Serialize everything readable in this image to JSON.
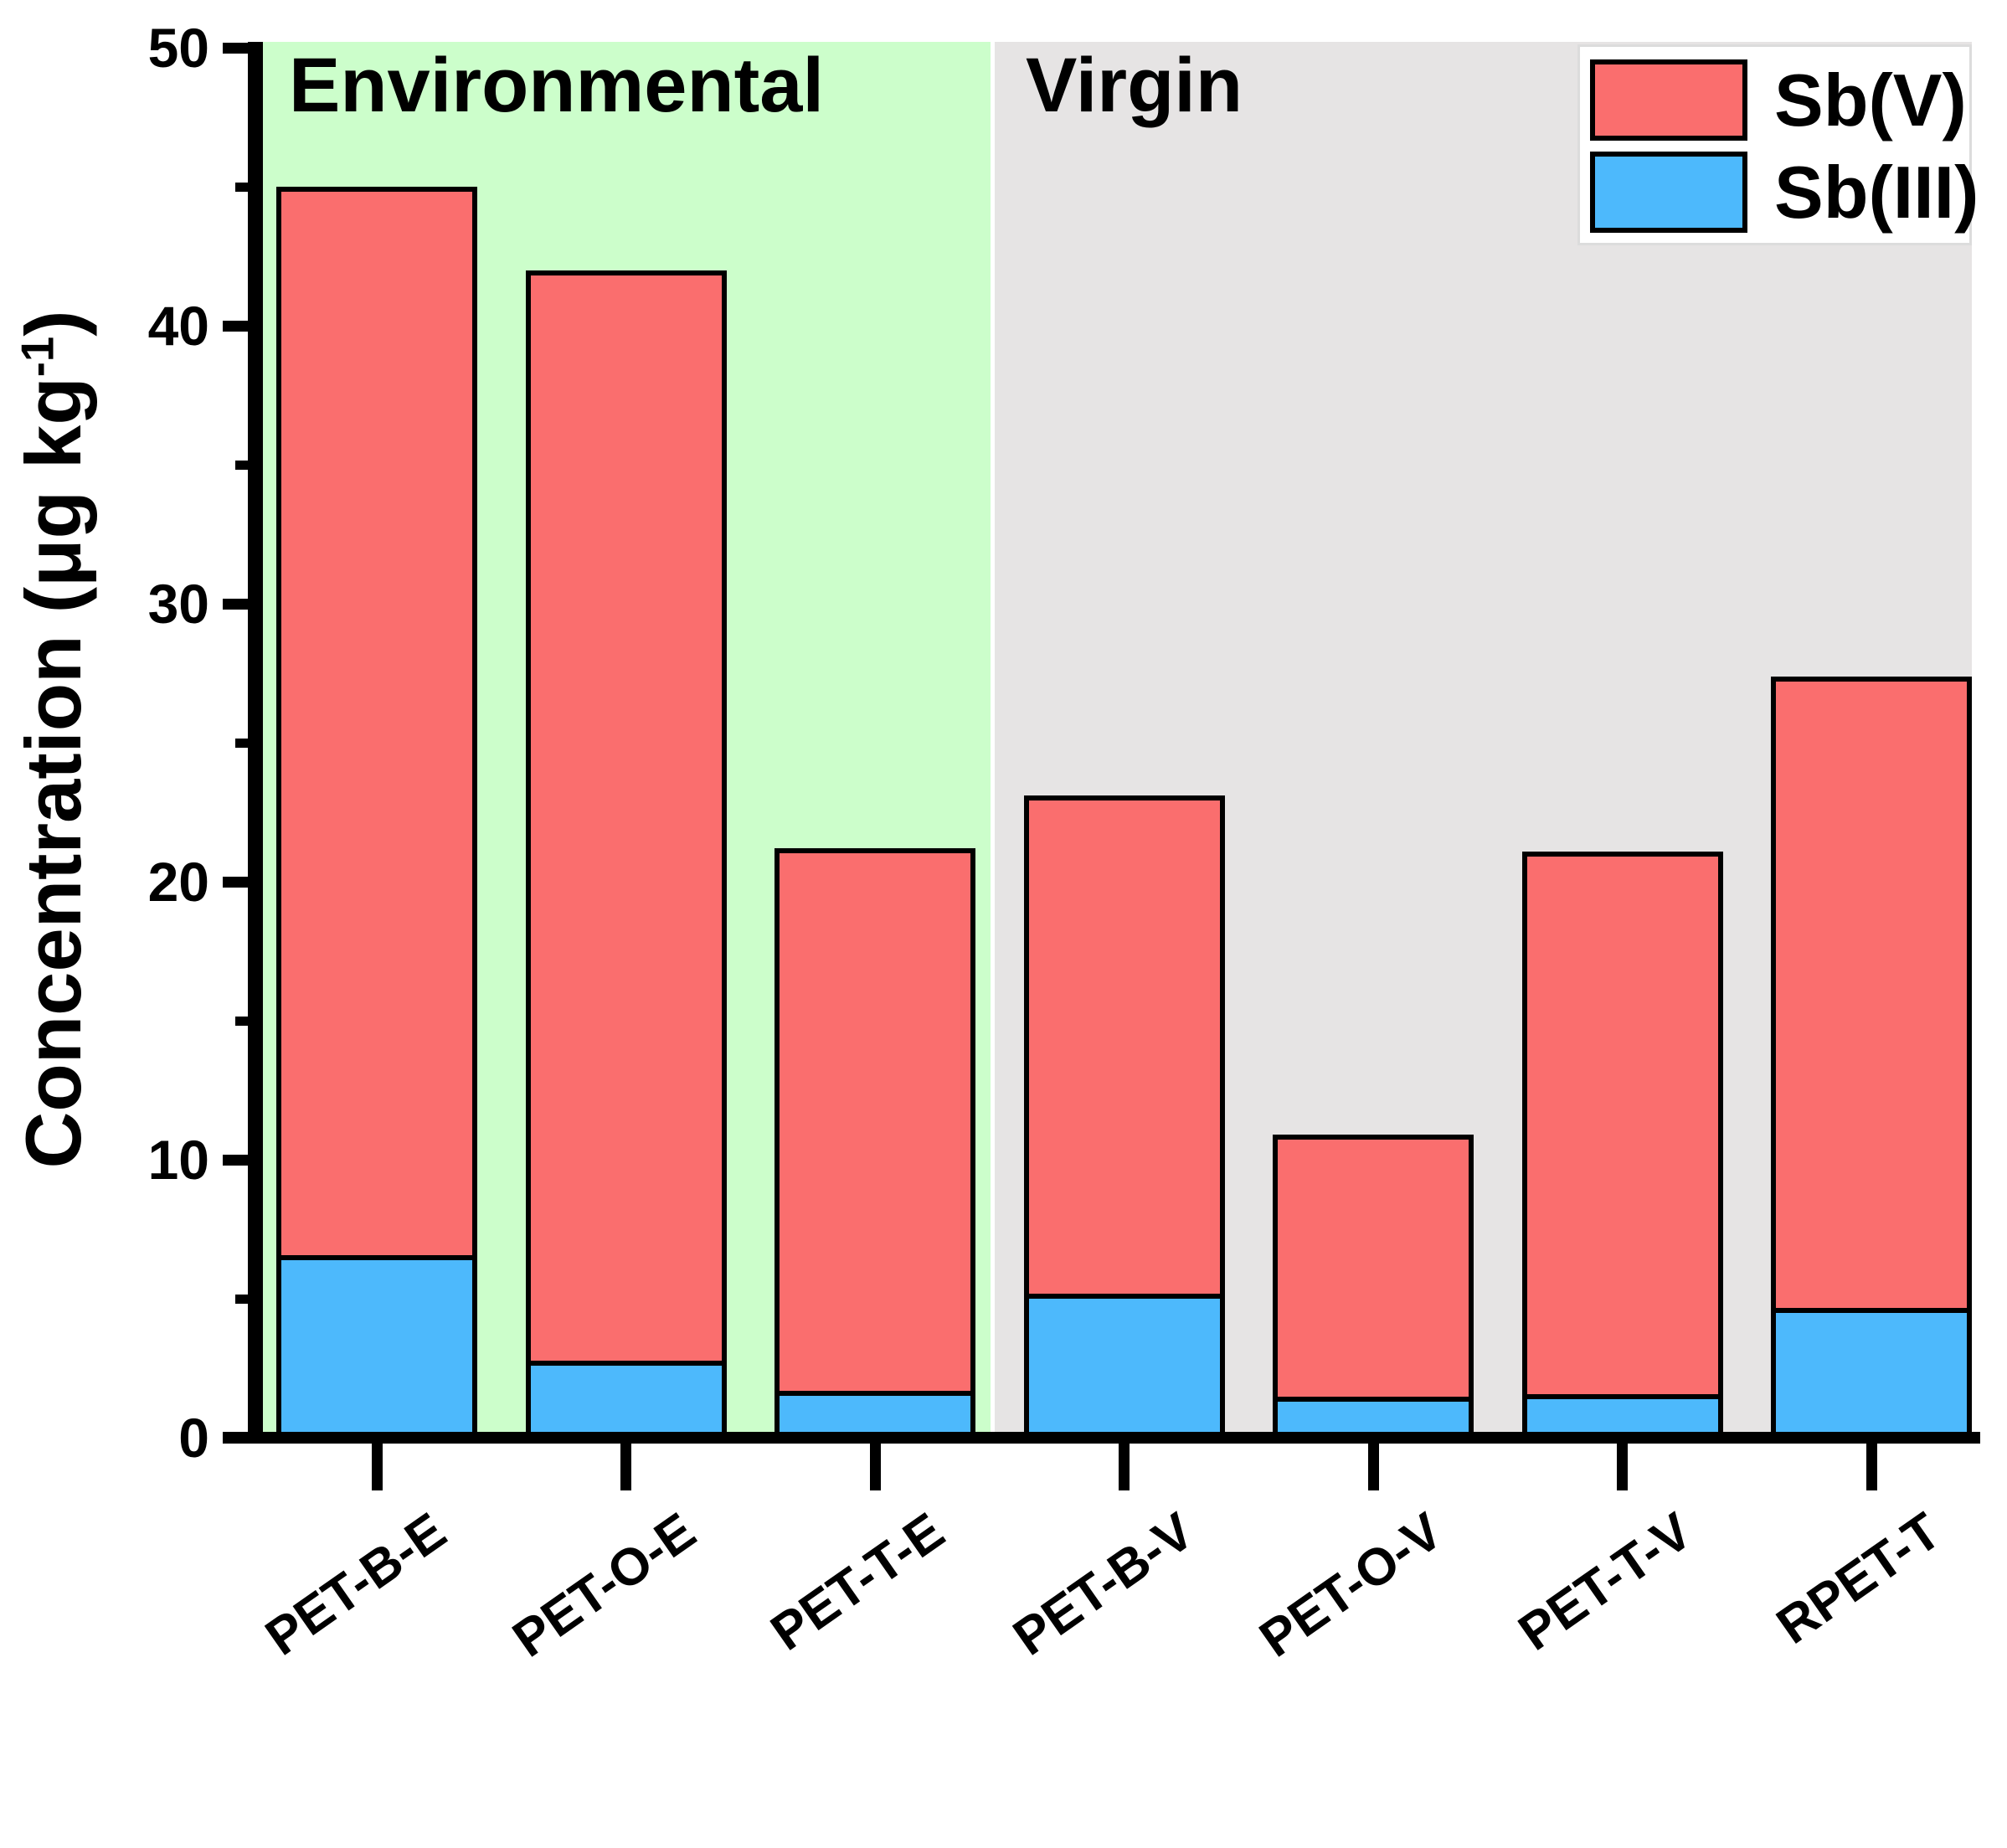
{
  "figure": {
    "y_axis": {
      "title_main": "Concentration (μg kg",
      "title_sup": "-1",
      "title_end": ")",
      "ticks": [
        0,
        10,
        20,
        30,
        40,
        50
      ],
      "minor_ticks": [
        5,
        15,
        25,
        35,
        45
      ],
      "range": [
        0,
        50
      ]
    },
    "regions": [
      {
        "id": "environmental",
        "label": "Environmental",
        "color": "#CCFECB"
      },
      {
        "id": "virgin",
        "label": "Virgin",
        "color": "#E6E4E4"
      }
    ],
    "legend": [
      {
        "label": "Sb(V)",
        "color": "#FA6E6E"
      },
      {
        "label": "Sb(III)",
        "color": "#4DB9FC"
      }
    ]
  },
  "chart_data": {
    "type": "bar",
    "stacked": true,
    "title": "",
    "xlabel": "",
    "ylabel": "Concentration (μg kg⁻¹)",
    "ylim": [
      0,
      50
    ],
    "grid": false,
    "legend_position": "top-right",
    "categories": [
      "PET-B-E",
      "PET-O-E",
      "PET-T-E",
      "PET-B-V",
      "PET-O-V",
      "PET-T-V",
      "RPET-T"
    ],
    "category_groups": [
      "Environmental",
      "Environmental",
      "Environmental",
      "Virgin",
      "Virgin",
      "Virgin",
      "Virgin"
    ],
    "series": [
      {
        "name": "Sb(III)",
        "color": "#4DB9FC",
        "values": [
          6.4,
          2.6,
          1.5,
          5.0,
          1.3,
          1.4,
          4.5
        ]
      },
      {
        "name": "Sb(V)",
        "color": "#FA6E6E",
        "values": [
          38.6,
          39.4,
          19.7,
          18.1,
          9.6,
          19.7,
          22.9
        ]
      }
    ],
    "stack_totals": [
      45.0,
      42.0,
      21.2,
      23.1,
      10.9,
      21.1,
      27.4
    ]
  }
}
